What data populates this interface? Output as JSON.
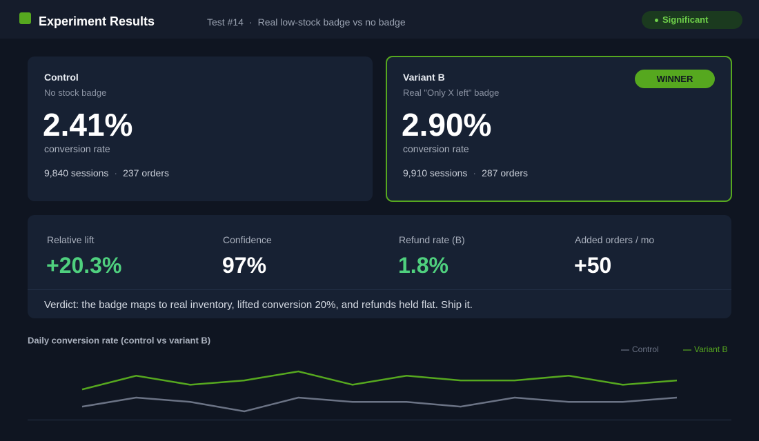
{
  "header": {
    "title": "Experiment Results",
    "test_id": "Test #14",
    "description": "Real low-stock badge vs no badge",
    "status": "Significant"
  },
  "cards": [
    {
      "name": "Control",
      "subtitle": "No stock badge",
      "rate": "2.41%",
      "rate_label": "conversion rate",
      "sessions": "9,840 sessions",
      "orders": "237 orders"
    },
    {
      "name": "Variant B",
      "subtitle": "Real \"Only X left\" badge",
      "rate": "2.90%",
      "rate_label": "conversion rate",
      "sessions": "9,910 sessions",
      "orders": "287 orders",
      "badge": "WINNER"
    }
  ],
  "metrics": [
    {
      "label": "Relative lift",
      "value": "+20.3%"
    },
    {
      "label": "Confidence",
      "value": "97%"
    },
    {
      "label": "Refund rate (B)",
      "value": "1.8%"
    },
    {
      "label": "Added orders / mo",
      "value": "+50"
    }
  ],
  "verdict": "Verdict: the badge maps to real inventory, lifted conversion 20%, and refunds held flat. Ship it.",
  "chart": {
    "type": "line",
    "title": "Daily conversion rate (control vs variant B)",
    "series": [
      {
        "name": "Control",
        "color": "#6b7385",
        "values": [
          2.29,
          2.5,
          2.4,
          2.18,
          2.5,
          2.4,
          2.4,
          2.29,
          2.5,
          2.4,
          2.4,
          2.5
        ]
      },
      {
        "name": "Variant B",
        "color": "#56a81f",
        "values": [
          2.69,
          3.01,
          2.8,
          2.9,
          3.11,
          2.8,
          3.01,
          2.9,
          2.9,
          3.01,
          2.8,
          2.9
        ]
      }
    ]
  }
}
